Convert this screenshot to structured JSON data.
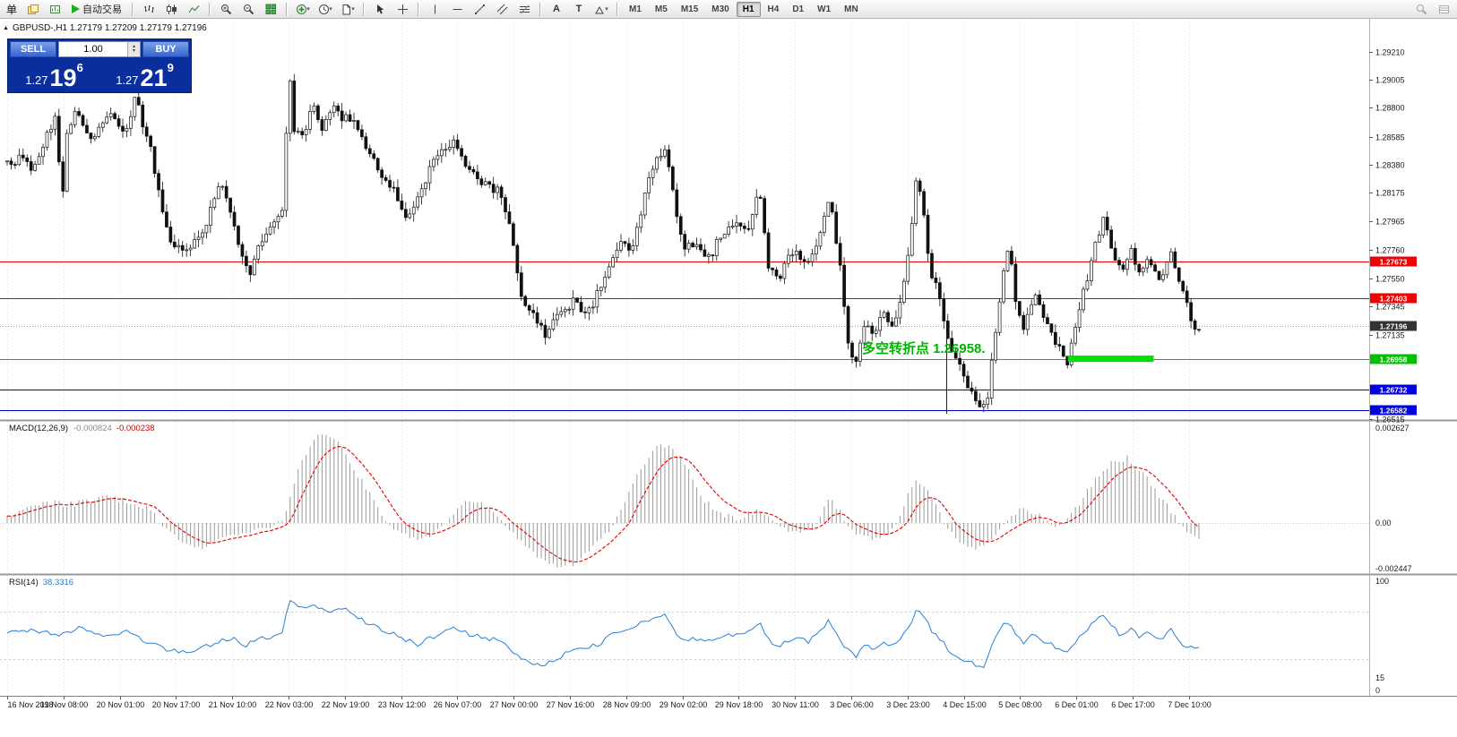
{
  "toolbar": {
    "menu_label": "单",
    "autotrade_label": "自动交易",
    "timeframes": [
      "M1",
      "M5",
      "M15",
      "M30",
      "H1",
      "H4",
      "D1",
      "W1",
      "MN"
    ],
    "active_timeframe": "H1",
    "text_tool_label": "A",
    "label_tool_label": "T"
  },
  "chart_header": {
    "symbol_line": "GBPUSD-,H1 1.27179 1.27209 1.27179 1.27196"
  },
  "trade_panel": {
    "sell_label": "SELL",
    "buy_label": "BUY",
    "volume": "1.00",
    "sell": {
      "small": "1.27",
      "big": "19",
      "sup": "6"
    },
    "buy": {
      "small": "1.27",
      "big": "21",
      "sup": "9"
    }
  },
  "indicators": {
    "macd": {
      "name": "MACD(12,26,9)",
      "v1": "-0.000824",
      "v2": "-0.000238"
    },
    "rsi": {
      "name": "RSI(14)",
      "value": "38.3316"
    }
  },
  "annotations": {
    "pivot_text": "多空转折点 1.26958."
  },
  "time_axis": {
    "labels": [
      "16 Nov 2018",
      "19 Nov 08:00",
      "20 Nov 01:00",
      "20 Nov 17:00",
      "21 Nov 10:00",
      "22 Nov 03:00",
      "22 Nov 19:00",
      "23 Nov 12:00",
      "26 Nov 07:00",
      "27 Nov 00:00",
      "27 Nov 16:00",
      "28 Nov 09:00",
      "29 Nov 02:00",
      "29 Nov 18:00",
      "30 Nov 11:00",
      "3 Dec 06:00",
      "3 Dec 23:00",
      "4 Dec 15:00",
      "5 Dec 08:00",
      "6 Dec 01:00",
      "6 Dec 17:00",
      "7 Dec 10:00"
    ]
  },
  "chart_data": {
    "type": "candlestick",
    "symbol": "GBPUSD",
    "timeframe": "H1",
    "last_ohlc": [
      1.27179,
      1.27209,
      1.27179,
      1.27196
    ],
    "current_price": 1.27196,
    "current_label": "1.27196",
    "price_range": [
      1.2643,
      1.2932
    ],
    "y_ticks": [
      "1.29210",
      "1.29005",
      "1.28800",
      "1.28585",
      "1.28380",
      "1.28175",
      "1.27965",
      "1.27760",
      "1.27550",
      "1.27345",
      "1.27135",
      "1.26515"
    ],
    "h_lines": [
      {
        "price": 1.27673,
        "label": "1.27673",
        "color": "#f00000"
      },
      {
        "price": 1.27403,
        "label": "1.27403",
        "color": "#f00000"
      },
      {
        "price": 1.26958,
        "label": "1.26958",
        "color": "#00c000"
      },
      {
        "price": 1.26732,
        "label": "1.26732",
        "color": "#0000e0"
      },
      {
        "price": 1.26582,
        "label": "1.26582",
        "color": "#0000e0"
      }
    ],
    "green_segment": {
      "price": 1.26958,
      "t1": 0.89,
      "t2": 0.962
    },
    "vline_t": 0.788,
    "candle_count": 300,
    "candles_path": [
      [
        0.0,
        1.2838
      ],
      [
        0.01,
        1.2842
      ],
      [
        0.022,
        1.2834
      ],
      [
        0.032,
        1.2858
      ],
      [
        0.04,
        1.2872
      ],
      [
        0.043,
        1.2846
      ],
      [
        0.046,
        1.2806
      ],
      [
        0.049,
        1.286
      ],
      [
        0.056,
        1.2876
      ],
      [
        0.064,
        1.2868
      ],
      [
        0.072,
        1.2858
      ],
      [
        0.08,
        1.2872
      ],
      [
        0.088,
        1.288
      ],
      [
        0.096,
        1.2862
      ],
      [
        0.104,
        1.2872
      ],
      [
        0.108,
        1.2896
      ],
      [
        0.113,
        1.287
      ],
      [
        0.118,
        1.2858
      ],
      [
        0.125,
        1.283
      ],
      [
        0.133,
        1.2792
      ],
      [
        0.14,
        1.278
      ],
      [
        0.152,
        1.2778
      ],
      [
        0.163,
        1.2785
      ],
      [
        0.171,
        1.2808
      ],
      [
        0.18,
        1.2824
      ],
      [
        0.188,
        1.28
      ],
      [
        0.197,
        1.2768
      ],
      [
        0.205,
        1.276
      ],
      [
        0.212,
        1.2782
      ],
      [
        0.22,
        1.2792
      ],
      [
        0.228,
        1.28
      ],
      [
        0.232,
        1.2802
      ],
      [
        0.236,
        1.2918
      ],
      [
        0.24,
        1.2866
      ],
      [
        0.248,
        1.2858
      ],
      [
        0.256,
        1.2884
      ],
      [
        0.264,
        1.2862
      ],
      [
        0.272,
        1.288
      ],
      [
        0.28,
        1.2874
      ],
      [
        0.291,
        1.287
      ],
      [
        0.302,
        1.285
      ],
      [
        0.313,
        1.2832
      ],
      [
        0.325,
        1.2818
      ],
      [
        0.336,
        1.2798
      ],
      [
        0.347,
        1.282
      ],
      [
        0.361,
        1.2846
      ],
      [
        0.374,
        1.2854
      ],
      [
        0.385,
        1.2836
      ],
      [
        0.4,
        1.2824
      ],
      [
        0.413,
        1.2818
      ],
      [
        0.424,
        1.2788
      ],
      [
        0.43,
        1.2742
      ],
      [
        0.441,
        1.273
      ],
      [
        0.452,
        1.2714
      ],
      [
        0.462,
        1.2728
      ],
      [
        0.475,
        1.2738
      ],
      [
        0.486,
        1.2728
      ],
      [
        0.496,
        1.2744
      ],
      [
        0.505,
        1.2762
      ],
      [
        0.514,
        1.2782
      ],
      [
        0.524,
        1.2772
      ],
      [
        0.534,
        1.2812
      ],
      [
        0.543,
        1.284
      ],
      [
        0.552,
        1.2846
      ],
      [
        0.559,
        1.2818
      ],
      [
        0.567,
        1.2774
      ],
      [
        0.577,
        1.2782
      ],
      [
        0.588,
        1.2768
      ],
      [
        0.599,
        1.2786
      ],
      [
        0.611,
        1.2796
      ],
      [
        0.622,
        1.2788
      ],
      [
        0.631,
        1.2826
      ],
      [
        0.638,
        1.2762
      ],
      [
        0.648,
        1.2756
      ],
      [
        0.659,
        1.2774
      ],
      [
        0.671,
        1.2766
      ],
      [
        0.682,
        1.2786
      ],
      [
        0.69,
        1.2818
      ],
      [
        0.699,
        1.2762
      ],
      [
        0.705,
        1.2708
      ],
      [
        0.712,
        1.2694
      ],
      [
        0.72,
        1.2724
      ],
      [
        0.727,
        1.271
      ],
      [
        0.735,
        1.273
      ],
      [
        0.742,
        1.2716
      ],
      [
        0.75,
        1.274
      ],
      [
        0.757,
        1.2778
      ],
      [
        0.763,
        1.283
      ],
      [
        0.768,
        1.2812
      ],
      [
        0.774,
        1.2758
      ],
      [
        0.782,
        1.2744
      ],
      [
        0.79,
        1.2708
      ],
      [
        0.797,
        1.2694
      ],
      [
        0.805,
        1.2678
      ],
      [
        0.814,
        1.2664
      ],
      [
        0.821,
        1.2658
      ],
      [
        0.827,
        1.27
      ],
      [
        0.835,
        1.2754
      ],
      [
        0.841,
        1.2778
      ],
      [
        0.847,
        1.2734
      ],
      [
        0.854,
        1.2718
      ],
      [
        0.862,
        1.2744
      ],
      [
        0.869,
        1.273
      ],
      [
        0.877,
        1.2714
      ],
      [
        0.884,
        1.27
      ],
      [
        0.89,
        1.269
      ],
      [
        0.896,
        1.2718
      ],
      [
        0.904,
        1.2748
      ],
      [
        0.913,
        1.2778
      ],
      [
        0.92,
        1.2798
      ],
      [
        0.926,
        1.278
      ],
      [
        0.934,
        1.276
      ],
      [
        0.943,
        1.2774
      ],
      [
        0.95,
        1.2758
      ],
      [
        0.958,
        1.277
      ],
      [
        0.965,
        1.2752
      ],
      [
        0.971,
        1.2758
      ],
      [
        0.977,
        1.2774
      ],
      [
        0.983,
        1.2754
      ],
      [
        0.99,
        1.2738
      ],
      [
        0.995,
        1.2718
      ],
      [
        1.0,
        1.27196
      ]
    ],
    "macd": {
      "scale": [
        "0.002627",
        "0.00",
        "-0.002447"
      ],
      "last": [
        -0.000824,
        -0.000238
      ],
      "path": [
        [
          0.0,
          0.0002
        ],
        [
          0.03,
          0.0006
        ],
        [
          0.05,
          0.0005
        ],
        [
          0.08,
          0.0007
        ],
        [
          0.1,
          0.0006
        ],
        [
          0.12,
          0.0004
        ],
        [
          0.135,
          -0.0004
        ],
        [
          0.15,
          -0.0011
        ],
        [
          0.165,
          -0.0013
        ],
        [
          0.18,
          -0.0007
        ],
        [
          0.2,
          -0.0005
        ],
        [
          0.22,
          -0.0002
        ],
        [
          0.232,
          0.0001
        ],
        [
          0.245,
          0.0016
        ],
        [
          0.258,
          0.0023
        ],
        [
          0.268,
          0.0025
        ],
        [
          0.28,
          0.0021
        ],
        [
          0.295,
          0.0013
        ],
        [
          0.31,
          0.0005
        ],
        [
          0.325,
          -0.0003
        ],
        [
          0.34,
          -0.0008
        ],
        [
          0.355,
          -0.0007
        ],
        [
          0.37,
          0.0001
        ],
        [
          0.385,
          0.0006
        ],
        [
          0.4,
          0.0005
        ],
        [
          0.415,
          0.0001
        ],
        [
          0.43,
          -0.0009
        ],
        [
          0.445,
          -0.0017
        ],
        [
          0.46,
          -0.0022
        ],
        [
          0.475,
          -0.0021
        ],
        [
          0.49,
          -0.0013
        ],
        [
          0.505,
          -0.0004
        ],
        [
          0.52,
          0.0007
        ],
        [
          0.535,
          0.0017
        ],
        [
          0.548,
          0.0022
        ],
        [
          0.558,
          0.0021
        ],
        [
          0.572,
          0.0014
        ],
        [
          0.585,
          0.0006
        ],
        [
          0.6,
          0.0002
        ],
        [
          0.615,
          0.0001
        ],
        [
          0.63,
          0.0004
        ],
        [
          0.645,
          -0.0001
        ],
        [
          0.66,
          -0.0005
        ],
        [
          0.675,
          -0.0004
        ],
        [
          0.69,
          0.0007
        ],
        [
          0.7,
          0.0003
        ],
        [
          0.712,
          -0.0006
        ],
        [
          0.727,
          -0.0008
        ],
        [
          0.74,
          -0.0005
        ],
        [
          0.752,
          0.0005
        ],
        [
          0.762,
          0.0012
        ],
        [
          0.772,
          0.001
        ],
        [
          0.785,
          0.0001
        ],
        [
          0.798,
          -0.0009
        ],
        [
          0.812,
          -0.0014
        ],
        [
          0.826,
          -0.0009
        ],
        [
          0.838,
          0.0001
        ],
        [
          0.852,
          0.0004
        ],
        [
          0.866,
          0.0002
        ],
        [
          0.88,
          -0.0002
        ],
        [
          0.895,
          0.0003
        ],
        [
          0.91,
          0.0011
        ],
        [
          0.925,
          0.0016
        ],
        [
          0.94,
          0.0018
        ],
        [
          0.952,
          0.0014
        ],
        [
          0.966,
          0.0008
        ],
        [
          0.98,
          0.0002
        ],
        [
          0.99,
          -0.0004
        ],
        [
          1.0,
          -0.00082
        ]
      ]
    },
    "rsi": {
      "scale": [
        "100",
        "15",
        "0"
      ],
      "levels": [
        70,
        30
      ],
      "last": 38.3316,
      "path": [
        [
          0.0,
          52
        ],
        [
          0.02,
          55
        ],
        [
          0.04,
          50
        ],
        [
          0.06,
          56
        ],
        [
          0.08,
          50
        ],
        [
          0.1,
          53
        ],
        [
          0.115,
          45
        ],
        [
          0.135,
          38
        ],
        [
          0.155,
          36
        ],
        [
          0.175,
          44
        ],
        [
          0.19,
          48
        ],
        [
          0.197,
          40
        ],
        [
          0.21,
          46
        ],
        [
          0.225,
          50
        ],
        [
          0.232,
          52
        ],
        [
          0.236,
          82
        ],
        [
          0.245,
          74
        ],
        [
          0.258,
          76
        ],
        [
          0.27,
          70
        ],
        [
          0.285,
          72
        ],
        [
          0.3,
          62
        ],
        [
          0.315,
          55
        ],
        [
          0.33,
          48
        ],
        [
          0.345,
          42
        ],
        [
          0.36,
          50
        ],
        [
          0.375,
          58
        ],
        [
          0.385,
          52
        ],
        [
          0.4,
          48
        ],
        [
          0.415,
          45
        ],
        [
          0.424,
          35
        ],
        [
          0.435,
          28
        ],
        [
          0.45,
          26
        ],
        [
          0.465,
          33
        ],
        [
          0.48,
          38
        ],
        [
          0.495,
          42
        ],
        [
          0.51,
          52
        ],
        [
          0.525,
          58
        ],
        [
          0.54,
          64
        ],
        [
          0.552,
          66
        ],
        [
          0.56,
          55
        ],
        [
          0.567,
          44
        ],
        [
          0.58,
          48
        ],
        [
          0.59,
          44
        ],
        [
          0.605,
          50
        ],
        [
          0.62,
          52
        ],
        [
          0.631,
          62
        ],
        [
          0.64,
          44
        ],
        [
          0.65,
          42
        ],
        [
          0.66,
          48
        ],
        [
          0.672,
          45
        ],
        [
          0.682,
          52
        ],
        [
          0.69,
          63
        ],
        [
          0.7,
          42
        ],
        [
          0.712,
          32
        ],
        [
          0.72,
          42
        ],
        [
          0.727,
          38
        ],
        [
          0.735,
          45
        ],
        [
          0.742,
          40
        ],
        [
          0.75,
          48
        ],
        [
          0.757,
          58
        ],
        [
          0.763,
          70
        ],
        [
          0.77,
          66
        ],
        [
          0.775,
          55
        ],
        [
          0.782,
          48
        ],
        [
          0.79,
          38
        ],
        [
          0.797,
          33
        ],
        [
          0.805,
          28
        ],
        [
          0.814,
          25
        ],
        [
          0.821,
          24
        ],
        [
          0.827,
          44
        ],
        [
          0.835,
          58
        ],
        [
          0.841,
          62
        ],
        [
          0.847,
          48
        ],
        [
          0.854,
          44
        ],
        [
          0.862,
          52
        ],
        [
          0.869,
          46
        ],
        [
          0.877,
          42
        ],
        [
          0.884,
          37
        ],
        [
          0.89,
          34
        ],
        [
          0.896,
          45
        ],
        [
          0.904,
          54
        ],
        [
          0.913,
          62
        ],
        [
          0.92,
          66
        ],
        [
          0.927,
          58
        ],
        [
          0.934,
          50
        ],
        [
          0.943,
          55
        ],
        [
          0.95,
          48
        ],
        [
          0.958,
          53
        ],
        [
          0.965,
          45
        ],
        [
          0.971,
          50
        ],
        [
          0.977,
          56
        ],
        [
          0.983,
          46
        ],
        [
          0.99,
          40
        ],
        [
          1.0,
          38.33
        ]
      ]
    }
  }
}
